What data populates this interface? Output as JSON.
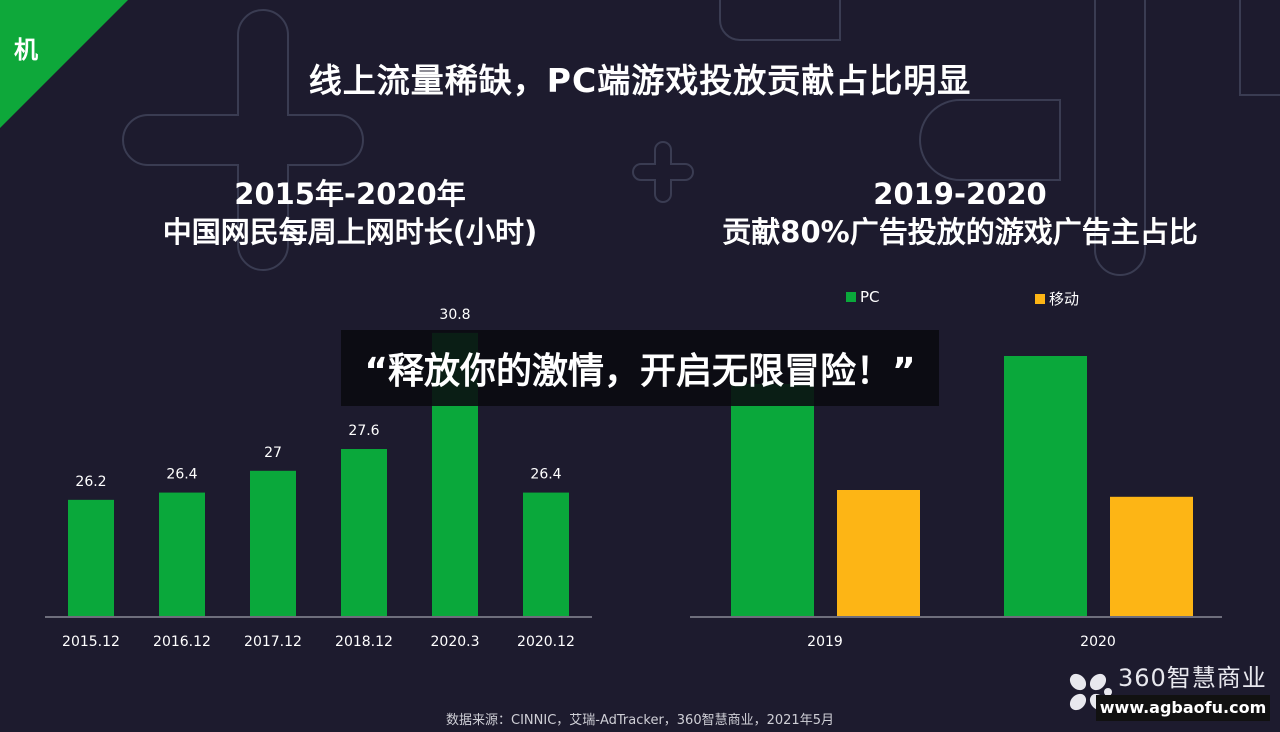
{
  "corner_label": "机",
  "title": "线上流量稀缺，PC端游戏投放贡献占比明显",
  "left_subtitle": [
    "2015年-2020年",
    "中国网民每周上网时长(小时)"
  ],
  "right_subtitle": [
    "2019-2020",
    "贡献80%广告投放的游戏广告主占比"
  ],
  "banner": "“释放你的激情，开启无限冒险！”",
  "source": "数据来源：CINNIC，艾瑞-AdTracker，360智慧商业，2021年5月",
  "logo": {
    "text": "360智慧商业",
    "url": "www.agbaofu.com"
  },
  "colors": {
    "green": "#0aa83b",
    "orange": "#fdb515",
    "background": "#1d1b2e"
  },
  "chart_data": [
    {
      "type": "bar",
      "title": "2015年-2020年 中国网民每周上网时长(小时)",
      "categories": [
        "2015.12",
        "2016.12",
        "2017.12",
        "2018.12",
        "2020.3",
        "2020.12"
      ],
      "values": [
        26.2,
        26.4,
        27,
        27.6,
        30.8,
        26.4
      ],
      "data_labels": [
        "26.2",
        "26.4",
        "27",
        "27.6",
        "30.8",
        "26.4"
      ],
      "xlabel": "",
      "ylabel": "",
      "ylim": [
        23,
        31.5
      ],
      "grid": false
    },
    {
      "type": "bar",
      "title": "2019-2020 贡献80%广告投放的游戏广告主占比",
      "categories": [
        "2019",
        "2020"
      ],
      "series": [
        {
          "name": "PC",
          "values": [
            58,
            65
          ]
        },
        {
          "name": "移动",
          "values": [
            31.5,
            29.8
          ]
        }
      ],
      "legend": "top",
      "xlabel": "",
      "ylabel": "",
      "ylim": [
        0,
        100
      ],
      "grid": false,
      "note": "values estimated, no axis shown"
    }
  ]
}
